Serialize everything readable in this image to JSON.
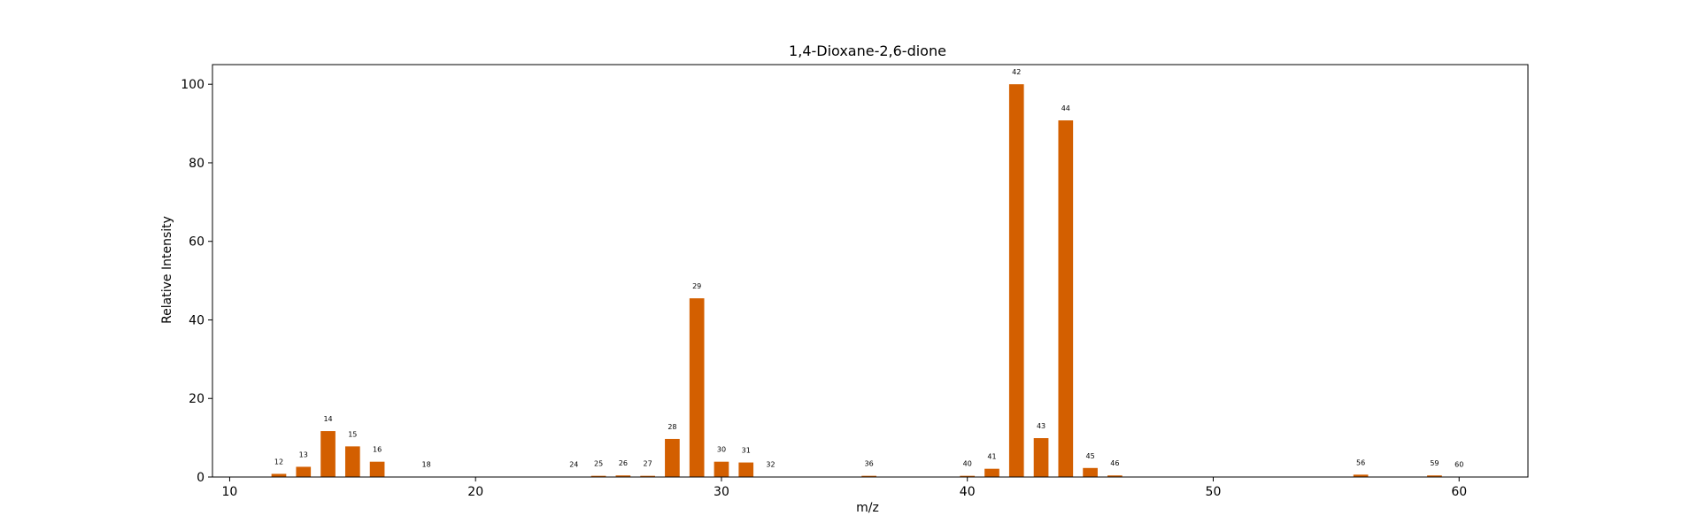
{
  "chart_data": {
    "type": "bar",
    "title": "1,4-Dioxane-2,6-dione",
    "xlabel": "m/z",
    "ylabel": "Relative Intensity",
    "xlim": [
      9.3,
      62.8
    ],
    "ylim": [
      0,
      105
    ],
    "xticks": [
      10,
      20,
      30,
      40,
      50,
      60
    ],
    "yticks": [
      0,
      20,
      40,
      60,
      80,
      100
    ],
    "bar_color": "#d35f00",
    "grid": false,
    "legend": "none",
    "series": [
      {
        "x": [
          12,
          13,
          14,
          15,
          16,
          18,
          24,
          25,
          26,
          27,
          28,
          29,
          30,
          31,
          32,
          36,
          40,
          41,
          42,
          43,
          44,
          45,
          46,
          56,
          59,
          60
        ],
        "values": [
          0.8,
          2.6,
          11.7,
          7.8,
          3.9,
          0.1,
          0.1,
          0.3,
          0.4,
          0.3,
          9.7,
          45.5,
          3.9,
          3.7,
          0.1,
          0.3,
          0.3,
          2.1,
          100,
          9.9,
          90.8,
          2.3,
          0.4,
          0.6,
          0.4,
          0.1
        ]
      }
    ]
  }
}
